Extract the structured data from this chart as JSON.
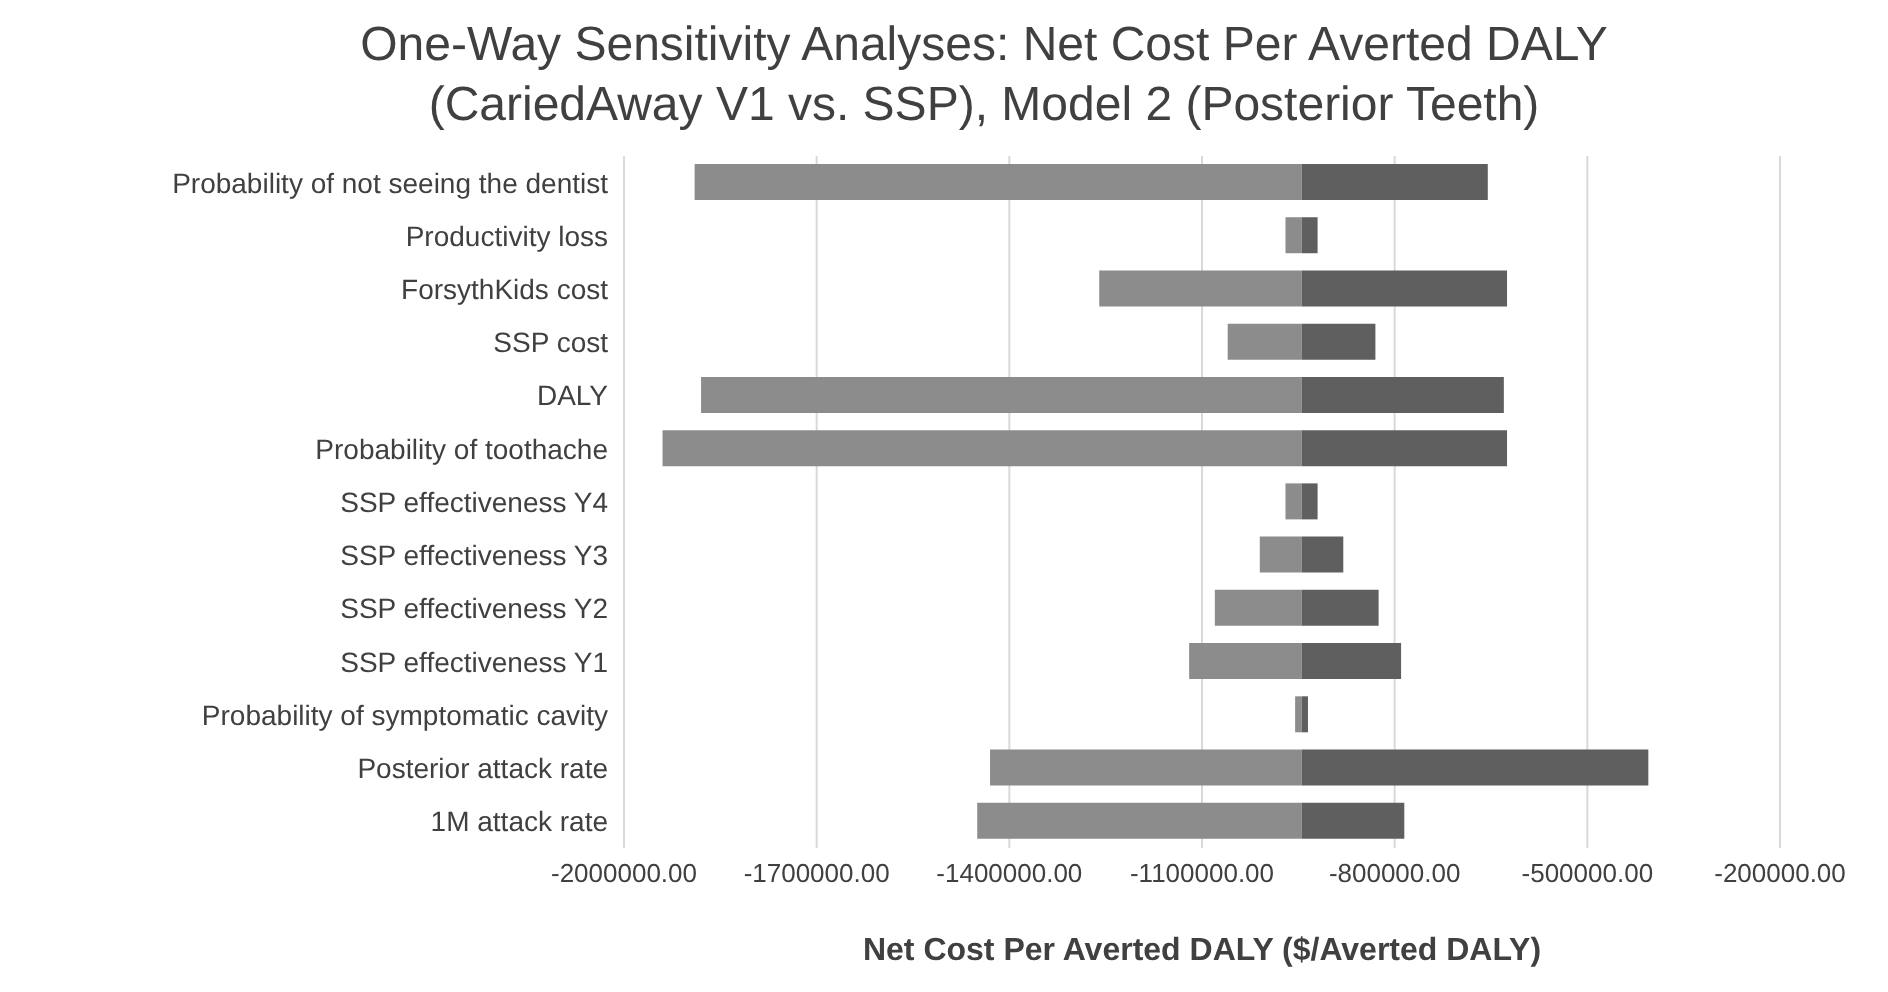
{
  "chart_data": {
    "type": "bar",
    "orientation": "horizontal",
    "title": "One-Way Sensitivity Analyses: Net Cost Per Averted DALY\n(CariedAway V1 vs. SSP), Model 2 (Posterior Teeth)",
    "xlabel": "Net Cost Per Averted DALY ($/Averted DALY)",
    "categories": [
      "Probability of not seeing the dentist",
      "Productivity loss",
      "ForsythKids cost",
      "SSP cost",
      "DALY",
      "Probability of toothache",
      "SSP effectiveness Y4",
      "SSP effectiveness Y3",
      "SSP effectiveness Y2",
      "SSP effectiveness Y1",
      "Probability of symptomatic cavity",
      "Posterior attack rate",
      "1M attack rate"
    ],
    "series": [
      {
        "color": "#8c8c8c",
        "base": [
          -1890000,
          -970000,
          -1260000,
          -1060000,
          -1880000,
          -1940000,
          -970000,
          -1010000,
          -1080000,
          -1120000,
          -955000,
          -1430000,
          -1450000
        ],
        "values": [
          945000,
          25000,
          315000,
          115000,
          935000,
          995000,
          25000,
          65000,
          135000,
          175000,
          10000,
          485000,
          505000
        ]
      },
      {
        "color": "#5f5f5f",
        "base": [
          -945000,
          -945000,
          -945000,
          -945000,
          -945000,
          -945000,
          -945000,
          -945000,
          -945000,
          -945000,
          -945000,
          -945000,
          -945000
        ],
        "values": [
          290000,
          25000,
          320000,
          115000,
          315000,
          320000,
          25000,
          65000,
          120000,
          155000,
          10000,
          540000,
          160000
        ]
      }
    ],
    "xlim": [
      -2000000,
      -200000
    ],
    "xticks": [
      {
        "value": -2000000,
        "label": "-2000000.00"
      },
      {
        "value": -1700000,
        "label": "-1700000.00"
      },
      {
        "value": -1400000,
        "label": "-1400000.00"
      },
      {
        "value": -1100000,
        "label": "-1100000.00"
      },
      {
        "value": -800000,
        "label": "-800000.00"
      },
      {
        "value": -500000,
        "label": "-500000.00"
      },
      {
        "value": -200000,
        "label": "-200000.00"
      }
    ],
    "grid": "x",
    "legend": false
  }
}
